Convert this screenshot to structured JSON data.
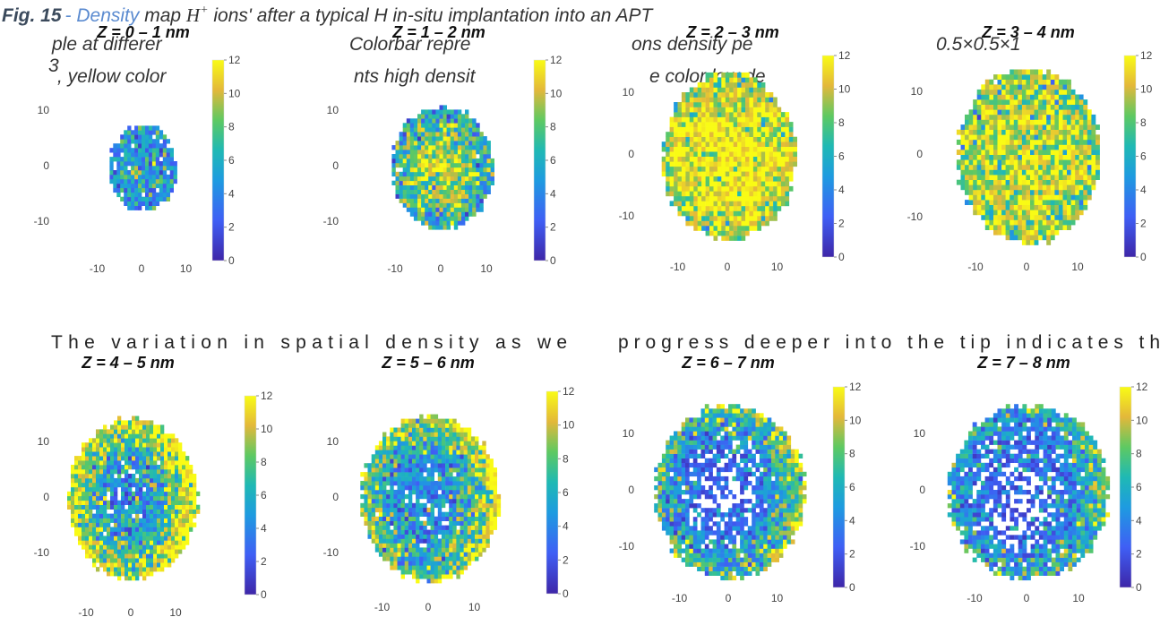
{
  "caption": {
    "label": "Fig. 15",
    "link": "- Density",
    "text1": " map ",
    "ion": "H",
    "ion_charge": "+",
    "text2": " ions' after a typical H in-situ implantation into an APT",
    "line2": [
      "ple at differer",
      "Colorbar repre",
      "ons density pe",
      "0.5×0.5×1"
    ],
    "line3_sup": "3",
    "line3": [
      ", yellow color",
      "nts high densit",
      "e color low de"
    ]
  },
  "body_text": [
    "The variation in spatial density as we",
    "progress deeper into the tip indicates th"
  ],
  "panels": [
    {
      "title": "Z = 0 – 1 nm",
      "yticks": [
        10,
        0,
        -10
      ],
      "xticks": [
        -10,
        0,
        10
      ],
      "colorbar_ticks": [
        0,
        2,
        4,
        6,
        8,
        10,
        12
      ]
    },
    {
      "title": "Z = 1 – 2 nm",
      "yticks": [
        10,
        0,
        -10
      ],
      "xticks": [
        -10,
        0,
        10
      ],
      "colorbar_ticks": [
        0,
        2,
        4,
        6,
        8,
        10,
        12
      ]
    },
    {
      "title": "Z = 2 – 3 nm",
      "yticks": [
        10,
        0,
        -10
      ],
      "xticks": [
        -10,
        0,
        10
      ],
      "colorbar_ticks": [
        0,
        2,
        4,
        6,
        8,
        10,
        12
      ]
    },
    {
      "title": "Z = 3 – 4 nm",
      "yticks": [
        10,
        0,
        -10
      ],
      "xticks": [
        -10,
        0,
        10
      ],
      "colorbar_ticks": [
        0,
        2,
        4,
        6,
        8,
        10,
        12
      ]
    },
    {
      "title": "Z = 4 – 5 nm",
      "yticks": [
        10,
        0,
        -10
      ],
      "xticks": [
        -10,
        0,
        10
      ],
      "colorbar_ticks": [
        0,
        2,
        4,
        6,
        8,
        10,
        12
      ]
    },
    {
      "title": "Z = 5 – 6 nm",
      "yticks": [
        10,
        0,
        -10
      ],
      "xticks": [
        -10,
        0,
        10
      ],
      "colorbar_ticks": [
        0,
        2,
        4,
        6,
        8,
        10,
        12
      ]
    },
    {
      "title": "Z = 6 – 7 nm",
      "yticks": [
        10,
        0,
        -10
      ],
      "xticks": [
        -10,
        0,
        10
      ],
      "colorbar_ticks": [
        0,
        2,
        4,
        6,
        8,
        10,
        12
      ]
    },
    {
      "title": "Z = 7 – 8 nm",
      "yticks": [
        10,
        0,
        -10
      ],
      "xticks": [
        -10,
        0,
        10
      ],
      "colorbar_ticks": [
        0,
        2,
        4,
        6,
        8,
        10,
        12
      ]
    }
  ]
}
